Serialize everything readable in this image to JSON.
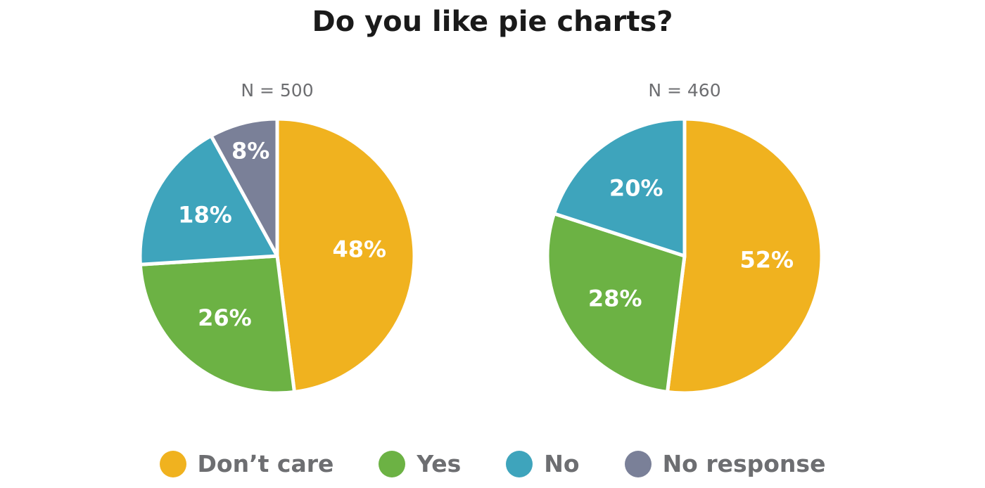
{
  "colors": {
    "dont_care": "#f0b21f",
    "yes": "#6cb244",
    "no": "#3ea4bc",
    "no_response": "#7a8098"
  },
  "chart_data": {
    "type": "pie",
    "title": "Do you like pie charts?",
    "legend": {
      "position": "bottom",
      "entries": [
        {
          "key": "dont_care",
          "label": "Don’t care"
        },
        {
          "key": "yes",
          "label": "Yes"
        },
        {
          "key": "no",
          "label": "No"
        },
        {
          "key": "no_response",
          "label": "No response"
        }
      ]
    },
    "pies": [
      {
        "n_label": "N = 500",
        "slices": [
          {
            "key": "dont_care",
            "value": 48,
            "label": "48%"
          },
          {
            "key": "yes",
            "value": 26,
            "label": "26%"
          },
          {
            "key": "no",
            "value": 18,
            "label": "18%"
          },
          {
            "key": "no_response",
            "value": 8,
            "label": "8%"
          }
        ]
      },
      {
        "n_label": "N = 460",
        "slices": [
          {
            "key": "dont_care",
            "value": 52,
            "label": "52%"
          },
          {
            "key": "yes",
            "value": 28,
            "label": "28%"
          },
          {
            "key": "no",
            "value": 20,
            "label": "20%"
          }
        ]
      }
    ]
  }
}
